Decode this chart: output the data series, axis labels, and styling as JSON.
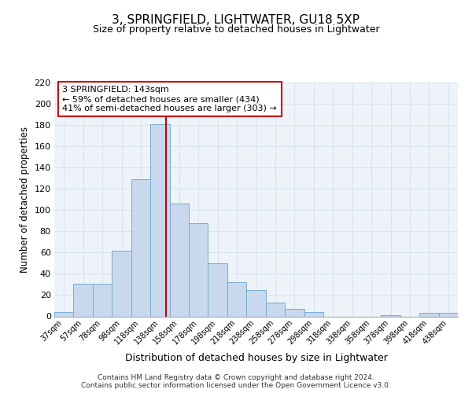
{
  "title1": "3, SPRINGFIELD, LIGHTWATER, GU18 5XP",
  "title2": "Size of property relative to detached houses in Lightwater",
  "xlabel": "Distribution of detached houses by size in Lightwater",
  "ylabel": "Number of detached properties",
  "bar_labels": [
    "37sqm",
    "57sqm",
    "78sqm",
    "98sqm",
    "118sqm",
    "138sqm",
    "158sqm",
    "178sqm",
    "198sqm",
    "218sqm",
    "238sqm",
    "258sqm",
    "278sqm",
    "298sqm",
    "318sqm",
    "338sqm",
    "358sqm",
    "378sqm",
    "398sqm",
    "418sqm",
    "438sqm"
  ],
  "bar_heights": [
    4,
    31,
    31,
    62,
    129,
    181,
    106,
    88,
    50,
    32,
    25,
    13,
    7,
    4,
    0,
    0,
    0,
    1,
    0,
    3,
    3
  ],
  "bar_color": "#c8d9ee",
  "bar_edge_color": "#7aaacf",
  "bin_edges": [
    27,
    47,
    67,
    87,
    107,
    127,
    147,
    167,
    187,
    207,
    227,
    247,
    267,
    287,
    307,
    327,
    347,
    367,
    387,
    407,
    427,
    447
  ],
  "property_line_x": 143,
  "ylim": [
    0,
    220
  ],
  "yticks": [
    0,
    20,
    40,
    60,
    80,
    100,
    120,
    140,
    160,
    180,
    200,
    220
  ],
  "annotation_title": "3 SPRINGFIELD: 143sqm",
  "annotation_line1": "← 59% of detached houses are smaller (434)",
  "annotation_line2": "41% of semi-detached houses are larger (303) →",
  "annotation_box_color": "#ffffff",
  "annotation_box_edge": "#cc0000",
  "vline_color": "#cc0000",
  "grid_color": "#d8e4f0",
  "bg_color": "#eef3fa",
  "footnote1": "Contains HM Land Registry data © Crown copyright and database right 2024.",
  "footnote2": "Contains public sector information licensed under the Open Government Licence v3.0."
}
